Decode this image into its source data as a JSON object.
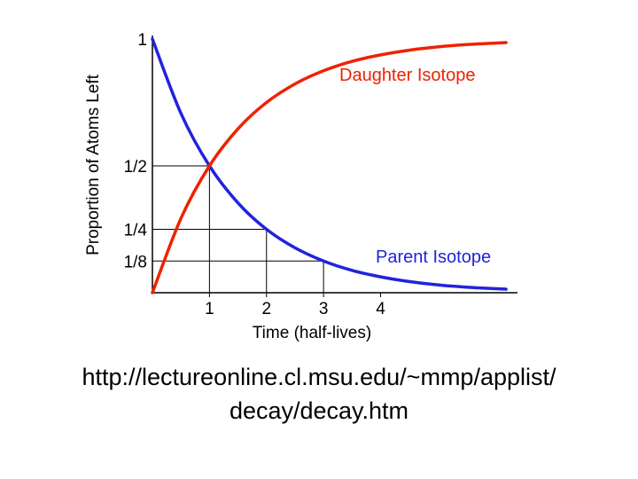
{
  "chart_data": {
    "type": "line",
    "title": "",
    "xlabel": "Time (half-lives)",
    "ylabel": "Proportion of Atoms Left",
    "xlim": [
      0,
      6.4
    ],
    "ylim": [
      0,
      1
    ],
    "x_ticks": [
      {
        "value": 1,
        "label": "1"
      },
      {
        "value": 2,
        "label": "2"
      },
      {
        "value": 3,
        "label": "3"
      },
      {
        "value": 4,
        "label": "4"
      }
    ],
    "y_ticks": [
      {
        "value": 1,
        "label": "1"
      },
      {
        "value": 0.5,
        "label": "1/2"
      },
      {
        "value": 0.25,
        "label": "1/4"
      },
      {
        "value": 0.125,
        "label": "1/8"
      }
    ],
    "reference_points": [
      {
        "x": 1,
        "y": 0.5
      },
      {
        "x": 2,
        "y": 0.25
      },
      {
        "x": 3,
        "y": 0.125
      }
    ],
    "series": [
      {
        "name": "Parent Isotope",
        "color": "#2222dd",
        "x": [
          0,
          0.5,
          1,
          1.5,
          2,
          2.5,
          3,
          3.5,
          4,
          4.5,
          5,
          5.5,
          6,
          6.2
        ],
        "values": [
          1,
          0.707,
          0.5,
          0.354,
          0.25,
          0.177,
          0.125,
          0.088,
          0.0625,
          0.044,
          0.031,
          0.022,
          0.016,
          0.014
        ]
      },
      {
        "name": "Daughter Isotope",
        "color": "#ee2200",
        "x": [
          0,
          0.5,
          1,
          1.5,
          2,
          2.5,
          3,
          3.5,
          4,
          4.5,
          5,
          5.5,
          6,
          6.2
        ],
        "values": [
          0,
          0.293,
          0.5,
          0.646,
          0.75,
          0.823,
          0.875,
          0.912,
          0.9375,
          0.956,
          0.969,
          0.978,
          0.984,
          0.986
        ]
      }
    ]
  },
  "source_text": {
    "line1": "http://lectureonline.cl.msu.edu/~mmp/applist/",
    "line2": "decay/decay.htm"
  }
}
